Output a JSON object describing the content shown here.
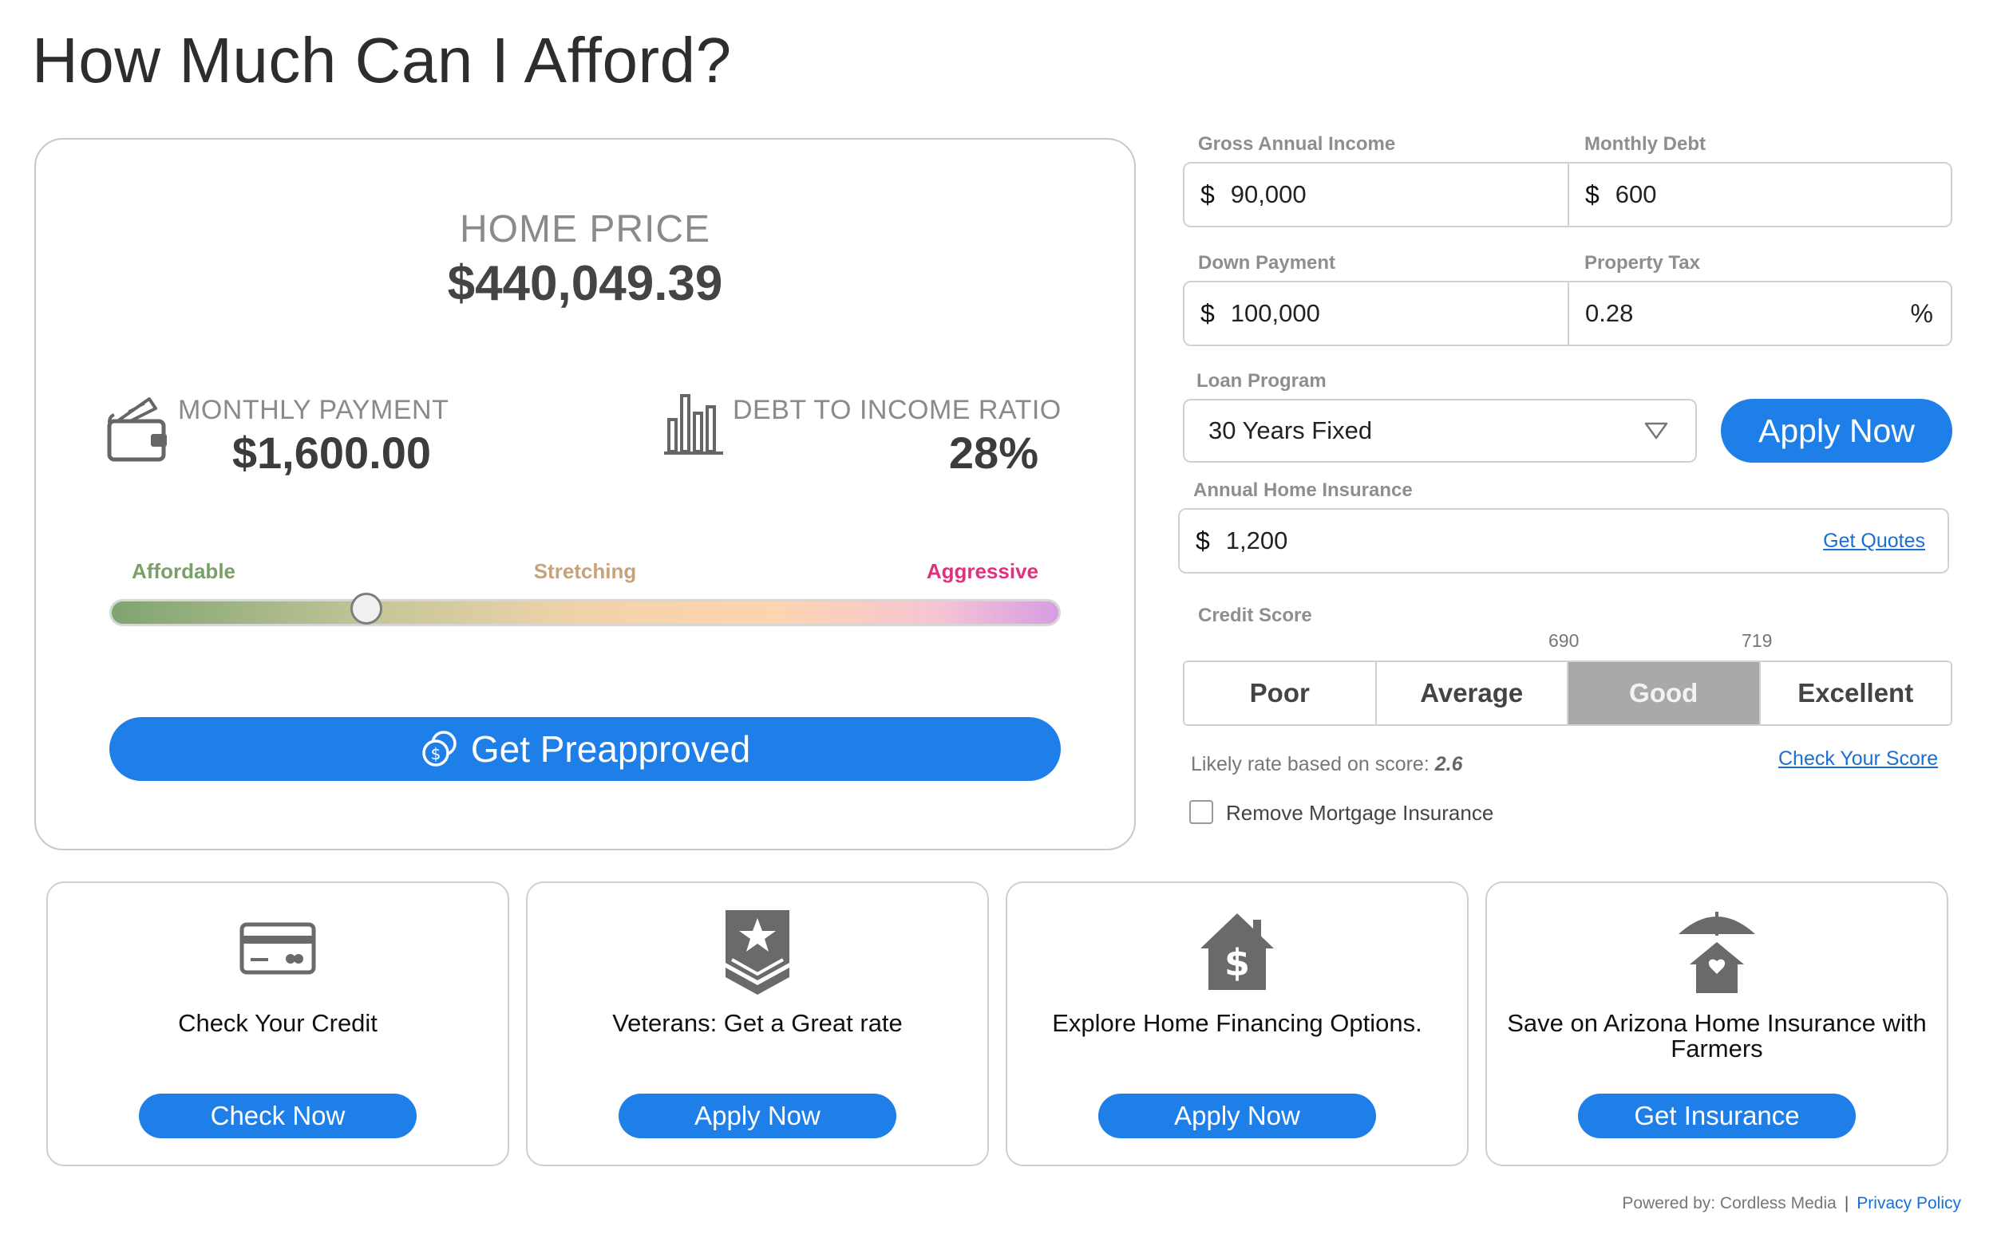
{
  "page": {
    "title": "How Much Can I Afford?"
  },
  "result": {
    "home_price_label": "HOME PRICE",
    "home_price_value": "$440,049.39",
    "monthly_payment_label": "MONTHLY PAYMENT",
    "monthly_payment_value": "$1,600.00",
    "dti_label": "DEBT TO INCOME RATIO",
    "dti_value": "28%",
    "range_labels": {
      "affordable": "Affordable",
      "stretching": "Stretching",
      "aggressive": "Aggressive"
    },
    "slider_level": 0.27,
    "preapproved_label": "Get Preapproved",
    "icons": {
      "monthly_payment": "wallet-icon",
      "dti": "bar-chart-icon",
      "preapproved": "coins-icon"
    }
  },
  "form": {
    "gross_income": {
      "label": "Gross Annual Income",
      "currency": "$",
      "value": "90,000"
    },
    "monthly_debt": {
      "label": "Monthly Debt",
      "currency": "$",
      "value": "600"
    },
    "down_payment": {
      "label": "Down Payment",
      "currency": "$",
      "value": "100,000"
    },
    "property_tax": {
      "label": "Property Tax",
      "value": "0.28",
      "unit": "%"
    },
    "loan_program": {
      "label": "Loan Program",
      "selected": "30 Years Fixed"
    },
    "apply_now_label": "Apply Now",
    "home_insurance": {
      "label": "Annual Home Insurance",
      "currency": "$",
      "value": "1,200",
      "link": "Get Quotes"
    },
    "credit_score": {
      "label": "Credit Score",
      "thresholds": [
        "690",
        "719"
      ],
      "options": [
        "Poor",
        "Average",
        "Good",
        "Excellent"
      ],
      "selected": "Good"
    },
    "rate_text": "Likely rate based on score:",
    "rate_value": "2.6",
    "check_score_link": "Check Your Score",
    "remove_mi_label": "Remove Mortgage Insurance"
  },
  "cards": [
    {
      "text": "Check Your Credit",
      "button": "Check Now",
      "icon": "credit-card-icon"
    },
    {
      "text": "Veterans: Get a Great rate",
      "button": "Apply Now",
      "icon": "military-badge-icon"
    },
    {
      "text": "Explore Home Financing Options.",
      "button": "Apply Now",
      "icon": "house-dollar-icon"
    },
    {
      "text": "Save on Arizona Home Insurance with Farmers",
      "button": "Get Insurance",
      "icon": "umbrella-house-icon"
    }
  ],
  "footer": {
    "powered_by": "Powered by: Cordless Media",
    "separator": "|",
    "privacy": "Privacy Policy"
  },
  "colors": {
    "accent": "#1f7fe8",
    "selected_credit": "#a9a9a9",
    "affordable": "#7aa06a",
    "stretching": "#c7a37a",
    "aggressive": "#e0307e"
  }
}
